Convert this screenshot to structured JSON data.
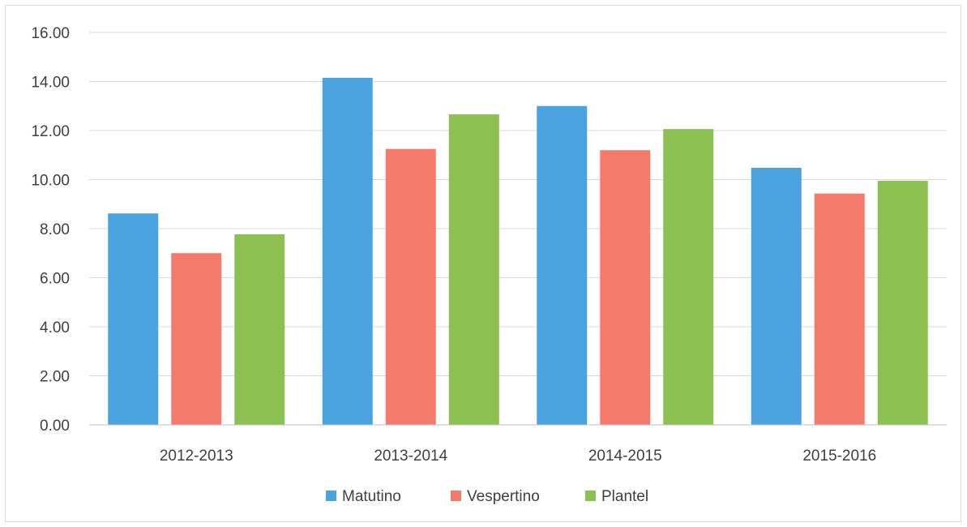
{
  "chart_data": {
    "type": "bar",
    "title": "",
    "xlabel": "",
    "ylabel": "",
    "categories": [
      "2012-2013",
      "2013-2014",
      "2014-2015",
      "2015-2016"
    ],
    "series": [
      {
        "name": "Matutino",
        "values": [
          8.62,
          14.15,
          13.0,
          10.48
        ],
        "color": "#4aa3df"
      },
      {
        "name": "Vespertino",
        "values": [
          7.0,
          11.25,
          11.2,
          9.43
        ],
        "color": "#f47b6b"
      },
      {
        "name": "Plantel",
        "values": [
          7.77,
          12.66,
          12.06,
          9.95
        ],
        "color": "#8cc152"
      }
    ],
    "ylim": [
      0,
      16
    ],
    "y_ticks": [
      "0.00",
      "2.00",
      "4.00",
      "6.00",
      "8.00",
      "10.00",
      "12.00",
      "14.00",
      "16.00"
    ],
    "y_tick_values": [
      0,
      2,
      4,
      6,
      8,
      10,
      12,
      14,
      16
    ],
    "grid": true,
    "legend_position": "bottom"
  }
}
